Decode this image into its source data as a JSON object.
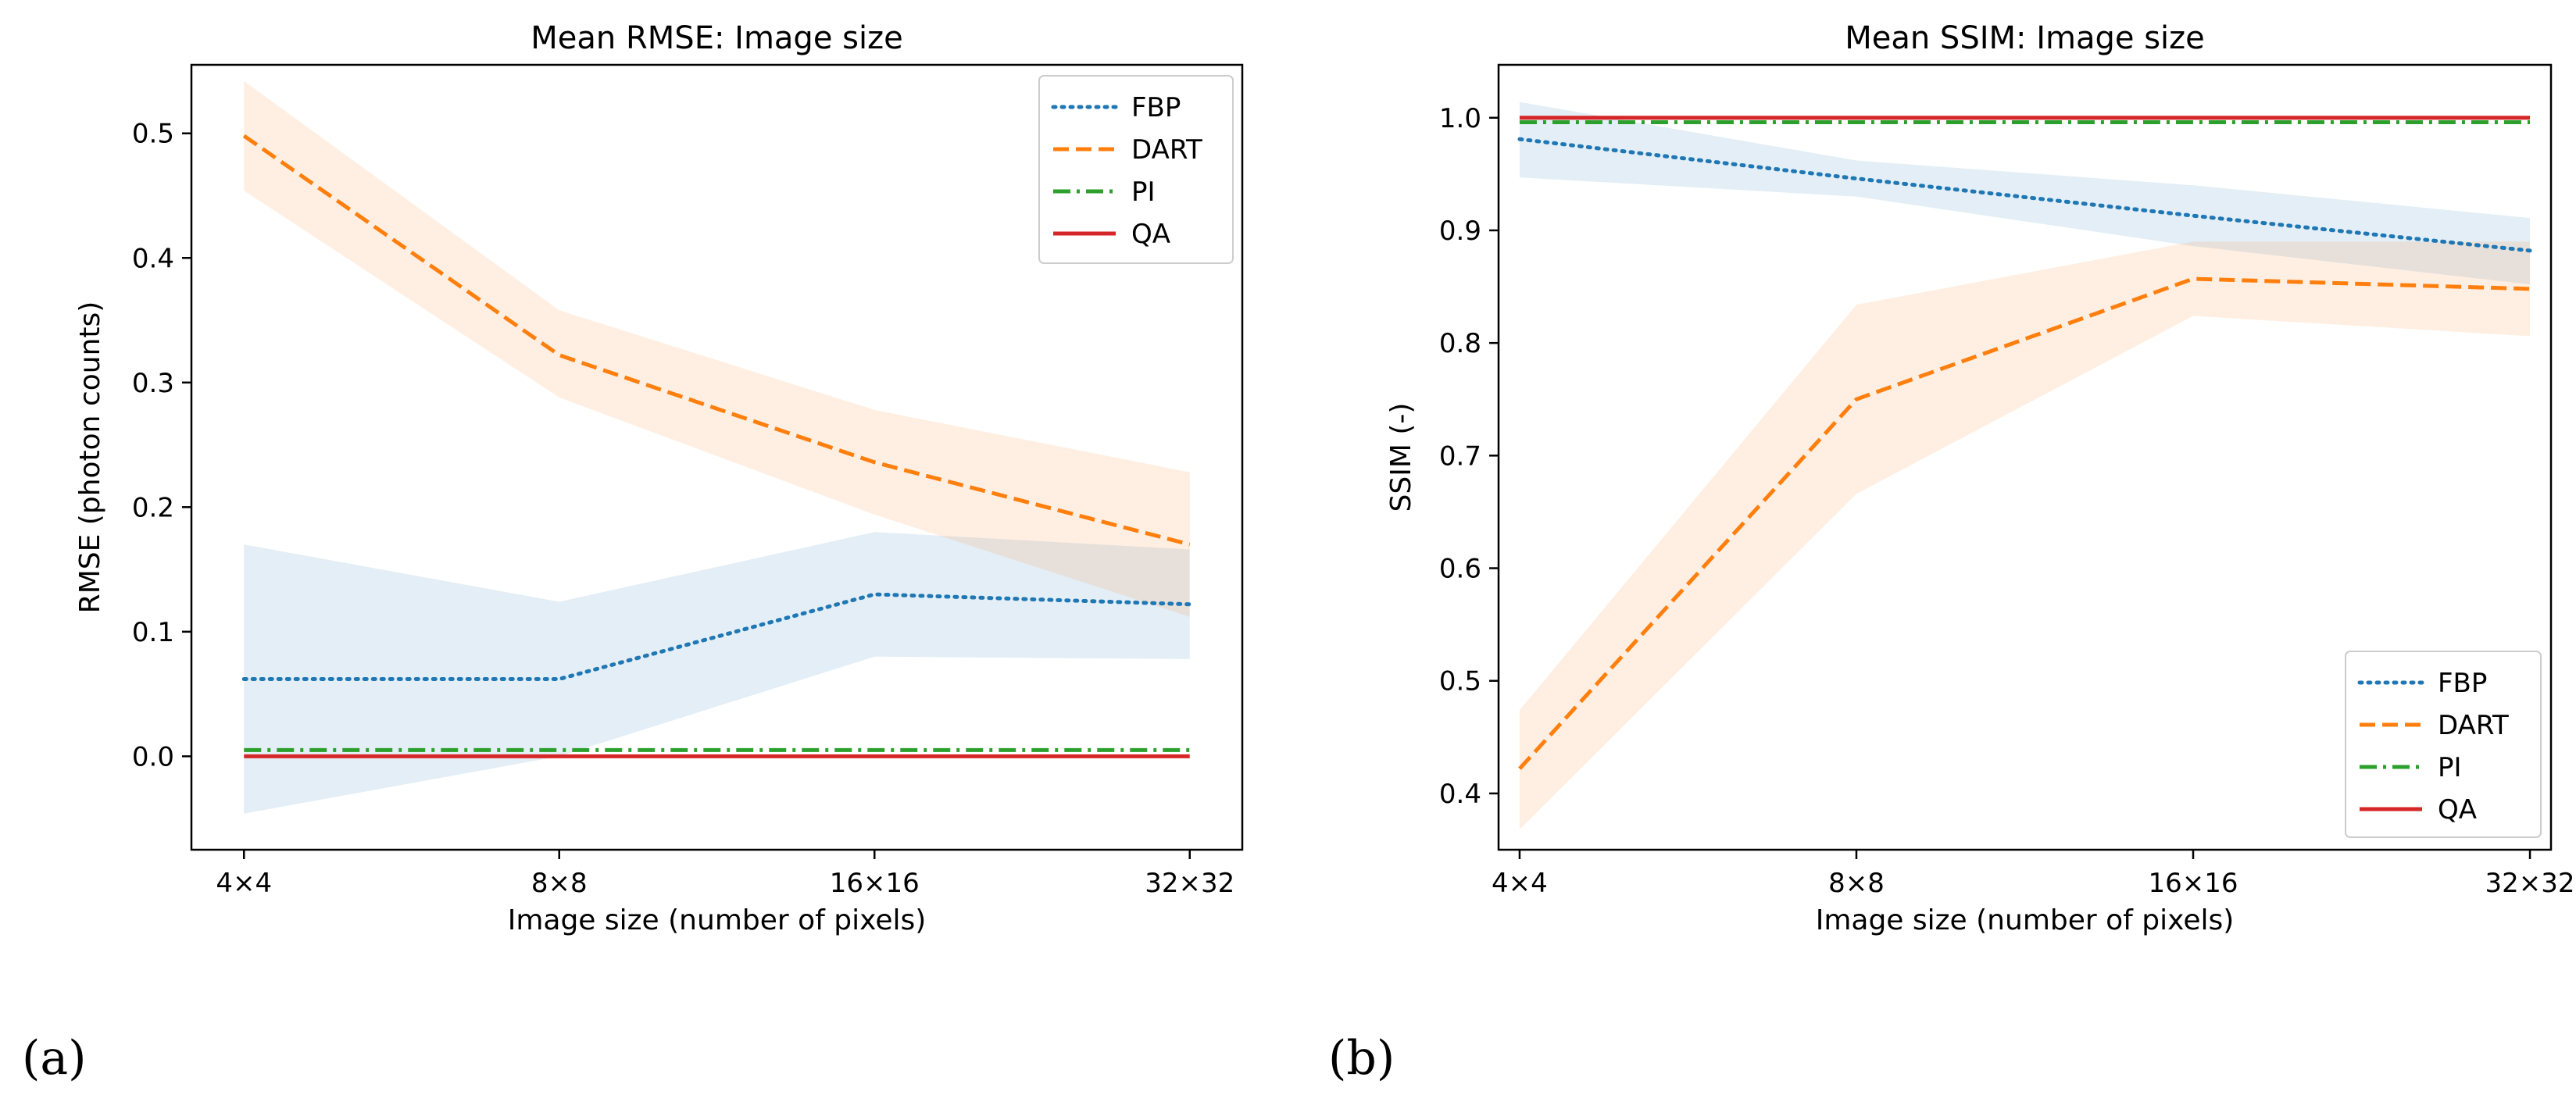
{
  "chart_data": [
    {
      "type": "line",
      "panel_label": "(a)",
      "title": "Mean RMSE: Image size",
      "xlabel": "Image size (number of pixels)",
      "ylabel": "RMSE (photon counts)",
      "categories": [
        "4×4",
        "8×8",
        "16×16",
        "32×32"
      ],
      "ylim": [
        -0.075,
        0.555
      ],
      "yticks": [
        "0.0",
        "0.1",
        "0.2",
        "0.3",
        "0.4",
        "0.5"
      ],
      "ytick_values": [
        0.0,
        0.1,
        0.2,
        0.3,
        0.4,
        0.5
      ],
      "legend_position": "top-right",
      "series": [
        {
          "name": "FBP",
          "color": "#1f77b4",
          "style": "dotted",
          "values": [
            0.062,
            0.062,
            0.13,
            0.122
          ],
          "lower": [
            -0.046,
            0.0,
            0.08,
            0.078
          ],
          "upper": [
            0.17,
            0.124,
            0.18,
            0.166
          ]
        },
        {
          "name": "DART",
          "color": "#ff7f0e",
          "style": "dashed",
          "values": [
            0.498,
            0.322,
            0.236,
            0.17
          ],
          "lower": [
            0.454,
            0.288,
            0.194,
            0.112
          ],
          "upper": [
            0.542,
            0.358,
            0.278,
            0.228
          ]
        },
        {
          "name": "PI",
          "color": "#2ca02c",
          "style": "dashdot",
          "values": [
            0.005,
            0.005,
            0.005,
            0.005
          ]
        },
        {
          "name": "QA",
          "color": "#d62728",
          "style": "solid",
          "values": [
            0.0,
            0.0,
            0.0,
            0.0
          ]
        }
      ]
    },
    {
      "type": "line",
      "panel_label": "(b)",
      "title": "Mean SSIM: Image size",
      "xlabel": "Image size (number of pixels)",
      "ylabel": "SSIM (-)",
      "categories": [
        "4×4",
        "8×8",
        "16×16",
        "32×32"
      ],
      "ylim": [
        0.35,
        1.047
      ],
      "yticks": [
        "0.4",
        "0.5",
        "0.6",
        "0.7",
        "0.8",
        "0.9",
        "1.0"
      ],
      "ytick_values": [
        0.4,
        0.5,
        0.6,
        0.7,
        0.8,
        0.9,
        1.0
      ],
      "legend_position": "bottom-right",
      "series": [
        {
          "name": "FBP",
          "color": "#1f77b4",
          "style": "dotted",
          "values": [
            0.981,
            0.946,
            0.913,
            0.882
          ],
          "lower": [
            0.947,
            0.93,
            0.886,
            0.852
          ],
          "upper": [
            1.014,
            0.962,
            0.94,
            0.911
          ]
        },
        {
          "name": "DART",
          "color": "#ff7f0e",
          "style": "dashed",
          "values": [
            0.422,
            0.75,
            0.857,
            0.848
          ],
          "lower": [
            0.368,
            0.666,
            0.824,
            0.806
          ],
          "upper": [
            0.474,
            0.834,
            0.89,
            0.89
          ]
        },
        {
          "name": "PI",
          "color": "#2ca02c",
          "style": "dashdot",
          "values": [
            0.996,
            0.996,
            0.996,
            0.996
          ]
        },
        {
          "name": "QA",
          "color": "#d62728",
          "style": "solid",
          "values": [
            1.0,
            1.0,
            1.0,
            1.0
          ]
        }
      ]
    }
  ]
}
